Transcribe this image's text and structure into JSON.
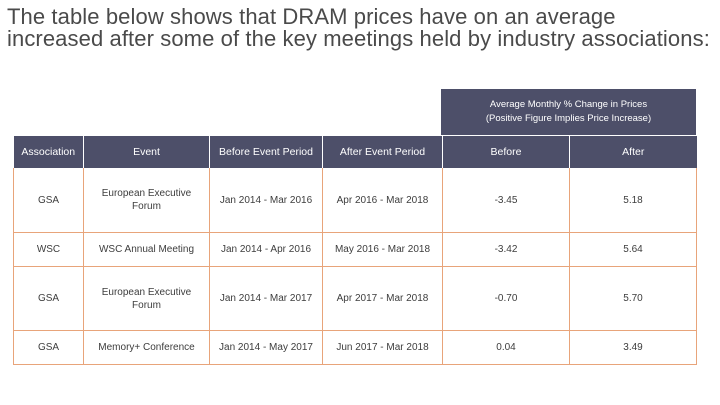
{
  "heading": "The table below shows that DRAM prices have on an average increased after some of the key meetings held by industry associations:",
  "group_header": {
    "line1": "Average Monthly % Change in Prices",
    "line2": "(Positive Figure Implies Price Increase)"
  },
  "columns": [
    "Association",
    "Event",
    "Before Event Period",
    "After Event Period",
    "Before",
    "After"
  ],
  "rows": [
    {
      "association": "GSA",
      "event": "European Executive Forum",
      "before_period": "Jan 2014 - Mar 2016",
      "after_period": "Apr 2016 - Mar 2018",
      "before": "-3.45",
      "after": "5.18"
    },
    {
      "association": "WSC",
      "event": "WSC Annual Meeting",
      "before_period": "Jan 2014 - Apr 2016",
      "after_period": "May 2016 - Mar 2018",
      "before": "-3.42",
      "after": "5.64"
    },
    {
      "association": "GSA",
      "event": "European Executive Forum",
      "before_period": "Jan 2014 - Mar 2017",
      "after_period": "Apr 2017 - Mar 2018",
      "before": "-0.70",
      "after": "5.70"
    },
    {
      "association": "GSA",
      "event": "Memory+ Conference",
      "before_period": "Jan 2014 - May 2017",
      "after_period": "Jun 2017 - Mar 2018",
      "before": "0.04",
      "after": "3.49"
    }
  ]
}
